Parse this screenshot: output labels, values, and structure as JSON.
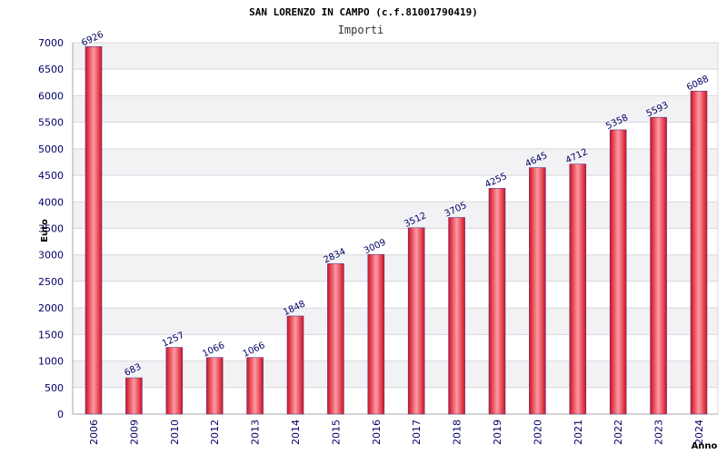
{
  "chart_data": {
    "type": "bar",
    "title": "SAN LORENZO IN CAMPO (c.f.81001790419)",
    "subtitle": "Importi",
    "xlabel": "Anno",
    "ylabel": "Euro",
    "categories": [
      "2006",
      "2009",
      "2010",
      "2012",
      "2013",
      "2014",
      "2015",
      "2016",
      "2017",
      "2018",
      "2019",
      "2020",
      "2021",
      "2022",
      "2023",
      "2024"
    ],
    "values": [
      6926,
      683,
      1257,
      1066,
      1066,
      1848,
      2834,
      3009,
      3512,
      3705,
      4255,
      4645,
      4712,
      5358,
      5593,
      6088
    ],
    "ylim": [
      0,
      7000
    ],
    "ytick_step": 500,
    "grid": true,
    "colors": {
      "bar_edge": "#d01020",
      "bar_mid": "#ff9aa4",
      "bar_outline": "#5a3a8a",
      "band": "#f2f2f4",
      "gridline": "#d8d8de",
      "tick_text": "#000066"
    }
  }
}
